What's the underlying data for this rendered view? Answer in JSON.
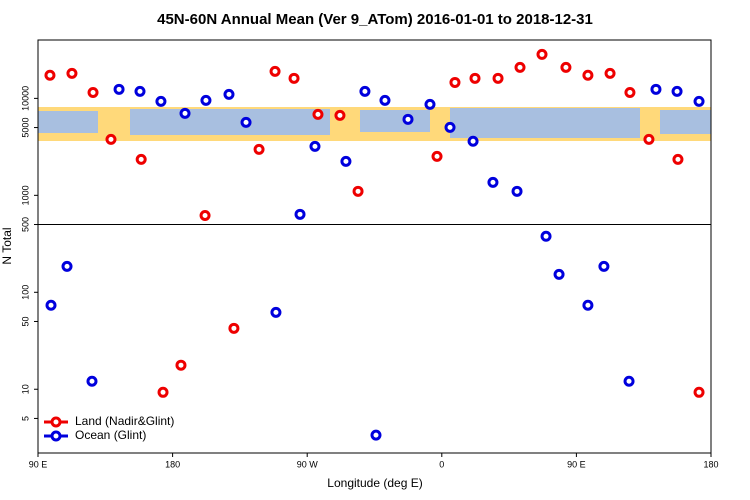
{
  "chart_data": {
    "type": "scatter",
    "title": "45N-60N Annual Mean (Ver 9_ATom)   2016-01-01 to 2018-12-31",
    "x_label": "Longitude (deg E)",
    "y_label": "N Total",
    "xlim": [
      90,
      540
    ],
    "xticks": [
      {
        "value": 90,
        "label": "90 E"
      },
      180,
      {
        "value": 270,
        "label": "90 W"
      },
      {
        "value": 360,
        "label": "0"
      },
      {
        "value": 450,
        "label": "90 E"
      },
      180
    ],
    "ylim": [
      2.2,
      40000
    ],
    "log_y": true,
    "yticks": [
      5,
      10,
      50,
      100,
      500,
      1000,
      5000,
      10000
    ],
    "hline": 500,
    "legend": "bottom-left",
    "series": [
      {
        "name": "Land (Nadir&Glint)",
        "color": "#ee0000",
        "x": [
          98,
          112.7,
          126.8,
          138.8,
          159,
          201.7,
          237.8,
          248.5,
          261.2,
          277.2,
          291.9,
          304,
          356.8,
          368.8,
          382.2,
          397.6,
          412.3,
          427,
          443,
          457.7,
          472.5,
          485.8,
          498.5,
          517.9,
          173.6,
          185.6,
          221,
          532
        ],
        "values": [
          17300,
          18100,
          11500,
          3780,
          2350,
          620,
          2980,
          19000,
          16100,
          6840,
          6680,
          1100,
          2520,
          14600,
          16100,
          16100,
          20900,
          28400,
          20900,
          17300,
          18100,
          11500,
          3780,
          2350,
          9.3,
          17.7,
          42.5,
          9.3
        ]
      },
      {
        "name": "Ocean (Glint)",
        "color": "#0000dd",
        "x": [
          98.7,
          109.4,
          126.1,
          144.2,
          158.2,
          172.2,
          188.3,
          202.3,
          217.7,
          229.1,
          249.1,
          265.2,
          275.2,
          295.9,
          308.6,
          316,
          322,
          337.4,
          352.1,
          365.5,
          380.9,
          394.2,
          410.3,
          429.7,
          438.4,
          457.7,
          468.4,
          485.2,
          503.2,
          517.3,
          532
        ],
        "values": [
          73.5,
          185,
          12.1,
          12400,
          11800,
          9310,
          7000,
          9530,
          11000,
          5660,
          62,
          637,
          3200,
          2240,
          11800,
          3.36,
          9530,
          6080,
          8670,
          5020,
          3610,
          1360,
          1100,
          378,
          153,
          73.5,
          185,
          12.1,
          12400,
          11800,
          9310
        ]
      }
    ]
  }
}
